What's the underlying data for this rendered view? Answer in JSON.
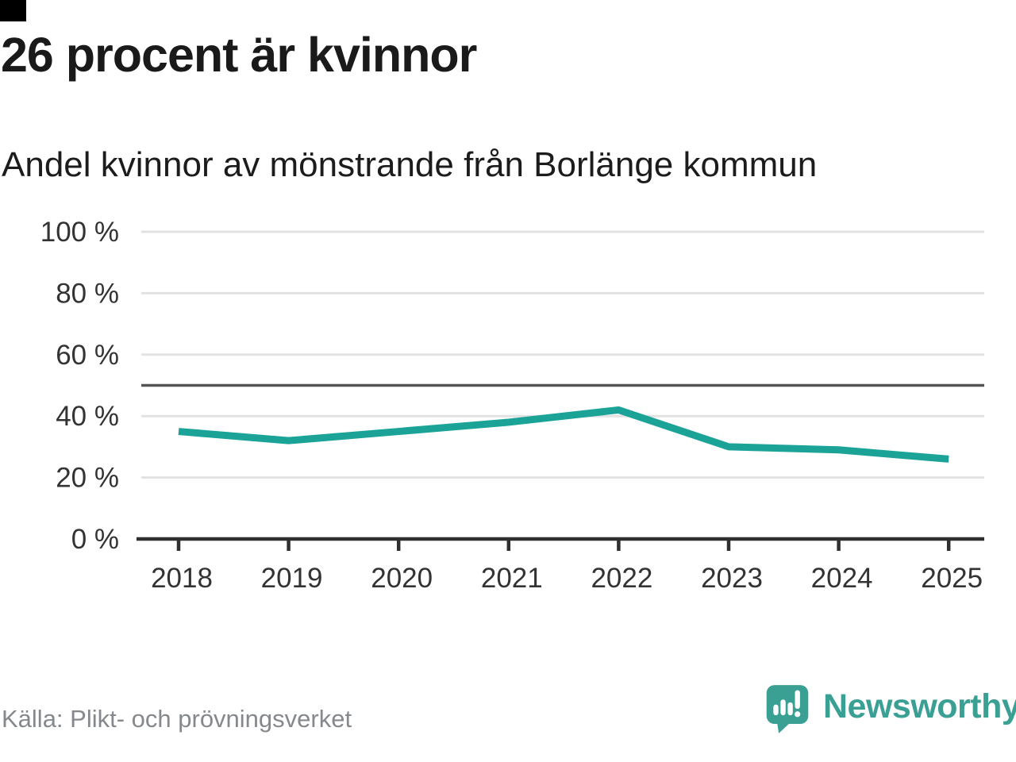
{
  "header": {
    "title": "26 procent är kvinnor",
    "subtitle": "Andel kvinnor av mönstrande från Borlänge kommun"
  },
  "chart_data": {
    "type": "line",
    "categories": [
      "2018",
      "2019",
      "2020",
      "2021",
      "2022",
      "2023",
      "2024",
      "2025"
    ],
    "values": [
      35,
      32,
      35,
      38,
      42,
      30,
      29,
      26
    ],
    "unit": "%",
    "ylim": [
      0,
      100
    ],
    "yticks": [
      0,
      20,
      40,
      60,
      80,
      100
    ],
    "ytick_suffix": " %",
    "reference_line": 50,
    "grid": true,
    "legend": "none",
    "colors": {
      "line": "#1aa396",
      "grid": "#e2e2e2",
      "axis": "#2f2f2f",
      "reference": "#555555",
      "tick_label": "#333333"
    }
  },
  "footer": {
    "source": "Källa: Plikt- och prövningsverket",
    "brand": "Newsworthy",
    "brand_color": "#3aa093"
  }
}
